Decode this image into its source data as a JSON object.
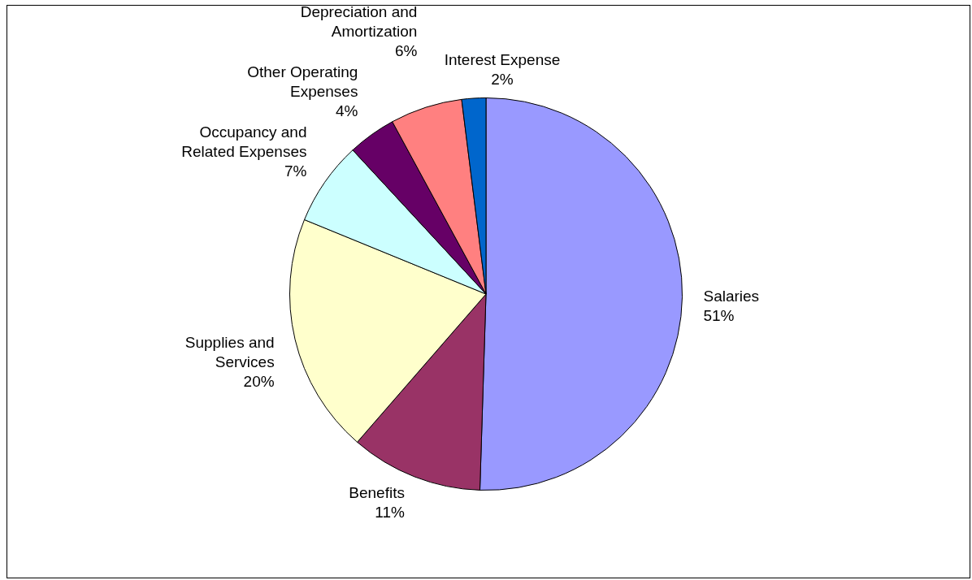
{
  "chart_data": {
    "type": "pie",
    "categories": [
      "Salaries",
      "Benefits",
      "Supplies and Services",
      "Occupancy and Related Expenses",
      "Other Operating Expenses",
      "Depreciation and Amortization",
      "Interest Expense"
    ],
    "values": [
      51,
      11,
      20,
      7,
      4,
      6,
      2
    ],
    "value_labels": [
      "51%",
      "11%",
      "20%",
      "7%",
      "4%",
      "6%",
      "2%"
    ],
    "colors": [
      "#9999ff",
      "#993366",
      "#ffffcc",
      "#ccffff",
      "#660066",
      "#ff8080",
      "#0066cc"
    ],
    "legend": false
  }
}
